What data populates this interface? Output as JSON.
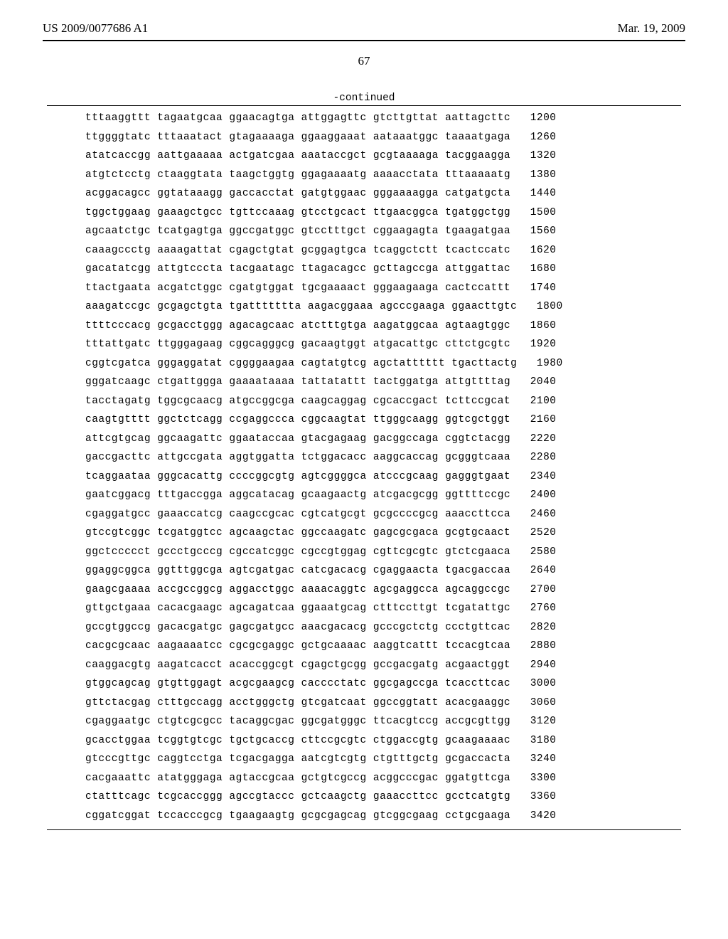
{
  "header": {
    "left": "US 2009/0077686 A1",
    "right": "Mar. 19, 2009"
  },
  "page_number": "67",
  "continued_label": "-continued",
  "sequence": {
    "font_family": "Courier New",
    "font_size_pt": 11,
    "text_color": "#000000",
    "background_color": "#ffffff",
    "group_size": 10,
    "groups_per_line": 6,
    "lines": [
      {
        "pos": 1200,
        "groups": [
          "tttaaggttt",
          "tagaatgcaa",
          "ggaacagtga",
          "attggagttc",
          "gtcttgttat",
          "aattagcttc"
        ]
      },
      {
        "pos": 1260,
        "groups": [
          "ttggggtatc",
          "tttaaatact",
          "gtagaaaaga",
          "ggaaggaaat",
          "aataaatggc",
          "taaaatgaga"
        ]
      },
      {
        "pos": 1320,
        "groups": [
          "atatcaccgg",
          "aattgaaaaa",
          "actgatcgaa",
          "aaataccgct",
          "gcgtaaaaga",
          "tacggaagga"
        ]
      },
      {
        "pos": 1380,
        "groups": [
          "atgtctcctg",
          "ctaaggtata",
          "taagctggtg",
          "ggagaaaatg",
          "aaaacctata",
          "tttaaaaatg"
        ]
      },
      {
        "pos": 1440,
        "groups": [
          "acggacagcc",
          "ggtataaagg",
          "gaccacctat",
          "gatgtggaac",
          "gggaaaagga",
          "catgatgcta"
        ]
      },
      {
        "pos": 1500,
        "groups": [
          "tggctggaag",
          "gaaagctgcc",
          "tgttccaaag",
          "gtcctgcact",
          "ttgaacggca",
          "tgatggctgg"
        ]
      },
      {
        "pos": 1560,
        "groups": [
          "agcaatctgc",
          "tcatgagtga",
          "ggccgatggc",
          "gtcctttgct",
          "cggaagagta",
          "tgaagatgaa"
        ]
      },
      {
        "pos": 1620,
        "groups": [
          "caaagccctg",
          "aaaagattat",
          "cgagctgtat",
          "gcggagtgca",
          "tcaggctctt",
          "tcactccatc"
        ]
      },
      {
        "pos": 1680,
        "groups": [
          "gacatatcgg",
          "attgtcccta",
          "tacgaatagc",
          "ttagacagcc",
          "gcttagccga",
          "attggattac"
        ]
      },
      {
        "pos": 1740,
        "groups": [
          "ttactgaata",
          "acgatctggc",
          "cgatgtggat",
          "tgcgaaaact",
          "gggaagaaga",
          "cactccattt"
        ]
      },
      {
        "pos": 1800,
        "groups": [
          "aaagatccgc",
          "gcgagctgta",
          "tgattttttta",
          "aagacggaaa",
          "agcccgaaga",
          "ggaacttgtc"
        ]
      },
      {
        "pos": 1860,
        "groups": [
          "ttttcccacg",
          "gcgacctggg",
          "agacagcaac",
          "atctttgtga",
          "aagatggcaa",
          "agtaagtggc"
        ]
      },
      {
        "pos": 1920,
        "groups": [
          "tttattgatc",
          "ttgggagaag",
          "cggcagggcg",
          "gacaagtggt",
          "atgacattgc",
          "cttctgcgtc"
        ]
      },
      {
        "pos": 1980,
        "groups": [
          "cggtcgatca",
          "gggaggatat",
          "cggggaagaa",
          "cagtatgtcg",
          "agctatttttt",
          "tgacttactg"
        ]
      },
      {
        "pos": 2040,
        "groups": [
          "gggatcaagc",
          "ctgattggga",
          "gaaaataaaa",
          "tattatattt",
          "tactggatga",
          "attgttttag"
        ]
      },
      {
        "pos": 2100,
        "groups": [
          "tacctagatg",
          "tggcgcaacg",
          "atgccggcga",
          "caagcaggag",
          "cgcaccgact",
          "tcttccgcat"
        ]
      },
      {
        "pos": 2160,
        "groups": [
          "caagtgtttt",
          "ggctctcagg",
          "ccgaggccca",
          "cggcaagtat",
          "ttgggcaagg",
          "ggtcgctggt"
        ]
      },
      {
        "pos": 2220,
        "groups": [
          "attcgtgcag",
          "ggcaagattc",
          "ggaataccaa",
          "gtacgagaag",
          "gacggccaga",
          "cggtctacgg"
        ]
      },
      {
        "pos": 2280,
        "groups": [
          "gaccgacttc",
          "attgccgata",
          "aggtggatta",
          "tctggacacc",
          "aaggcaccag",
          "gcgggtcaaa"
        ]
      },
      {
        "pos": 2340,
        "groups": [
          "tcaggaataa",
          "gggcacattg",
          "ccccggcgtg",
          "agtcggggca",
          "atcccgcaag",
          "gagggtgaat"
        ]
      },
      {
        "pos": 2400,
        "groups": [
          "gaatcggacg",
          "tttgaccgga",
          "aggcatacag",
          "gcaagaactg",
          "atcgacgcgg",
          "ggttttccgc"
        ]
      },
      {
        "pos": 2460,
        "groups": [
          "cgaggatgcc",
          "gaaaccatcg",
          "caagccgcac",
          "cgtcatgcgt",
          "gcgccccgcg",
          "aaaccttcca"
        ]
      },
      {
        "pos": 2520,
        "groups": [
          "gtccgtcggc",
          "tcgatggtcc",
          "agcaagctac",
          "ggccaagatc",
          "gagcgcgaca",
          "gcgtgcaact"
        ]
      },
      {
        "pos": 2580,
        "groups": [
          "ggctccccct",
          "gccctgcccg",
          "cgccatcggc",
          "cgccgtggag",
          "cgttcgcgtc",
          "gtctcgaaca"
        ]
      },
      {
        "pos": 2640,
        "groups": [
          "ggaggcggca",
          "ggtttggcga",
          "agtcgatgac",
          "catcgacacg",
          "cgaggaacta",
          "tgacgaccaa"
        ]
      },
      {
        "pos": 2700,
        "groups": [
          "gaagcgaaaa",
          "accgccggcg",
          "aggacctggc",
          "aaaacaggtc",
          "agcgaggcca",
          "agcaggccgc"
        ]
      },
      {
        "pos": 2760,
        "groups": [
          "gttgctgaaa",
          "cacacgaagc",
          "agcagatcaa",
          "ggaaatgcag",
          "ctttccttgt",
          "tcgatattgc"
        ]
      },
      {
        "pos": 2820,
        "groups": [
          "gccgtggccg",
          "gacacgatgc",
          "gagcgatgcc",
          "aaacgacacg",
          "gcccgctctg",
          "ccctgttcac"
        ]
      },
      {
        "pos": 2880,
        "groups": [
          "cacgcgcaac",
          "aagaaaatcc",
          "cgcgcgaggc",
          "gctgcaaaac",
          "aaggtcattt",
          "tccacgtcaa"
        ]
      },
      {
        "pos": 2940,
        "groups": [
          "caaggacgtg",
          "aagatcacct",
          "acaccggcgt",
          "cgagctgcgg",
          "gccgacgatg",
          "acgaactggt"
        ]
      },
      {
        "pos": 3000,
        "groups": [
          "gtggcagcag",
          "gtgttggagt",
          "acgcgaagcg",
          "cacccctatc",
          "ggcgagccga",
          "tcaccttcac"
        ]
      },
      {
        "pos": 3060,
        "groups": [
          "gttctacgag",
          "ctttgccagg",
          "acctgggctg",
          "gtcgatcaat",
          "ggccggtatt",
          "acacgaaggc"
        ]
      },
      {
        "pos": 3120,
        "groups": [
          "cgaggaatgc",
          "ctgtcgcgcc",
          "tacaggcgac",
          "ggcgatgggc",
          "ttcacgtccg",
          "accgcgttgg"
        ]
      },
      {
        "pos": 3180,
        "groups": [
          "gcacctggaa",
          "tcggtgtcgc",
          "tgctgcaccg",
          "cttccgcgtc",
          "ctggaccgtg",
          "gcaagaaaac"
        ]
      },
      {
        "pos": 3240,
        "groups": [
          "gtcccgttgc",
          "caggtcctga",
          "tcgacgagga",
          "aatcgtcgtg",
          "ctgtttgctg",
          "gcgaccacta"
        ]
      },
      {
        "pos": 3300,
        "groups": [
          "cacgaaattc",
          "atatgggaga",
          "agtaccgcaa",
          "gctgtcgccg",
          "acggcccgac",
          "ggatgttcga"
        ]
      },
      {
        "pos": 3360,
        "groups": [
          "ctatttcagc",
          "tcgcaccggg",
          "agccgtaccc",
          "gctcaagctg",
          "gaaaccttcc",
          "gcctcatgtg"
        ]
      },
      {
        "pos": 3420,
        "groups": [
          "cggatcggat",
          "tccacccgcg",
          "tgaagaagtg",
          "gcgcgagcag",
          "gtcggcgaag",
          "cctgcgaaga"
        ]
      }
    ]
  }
}
